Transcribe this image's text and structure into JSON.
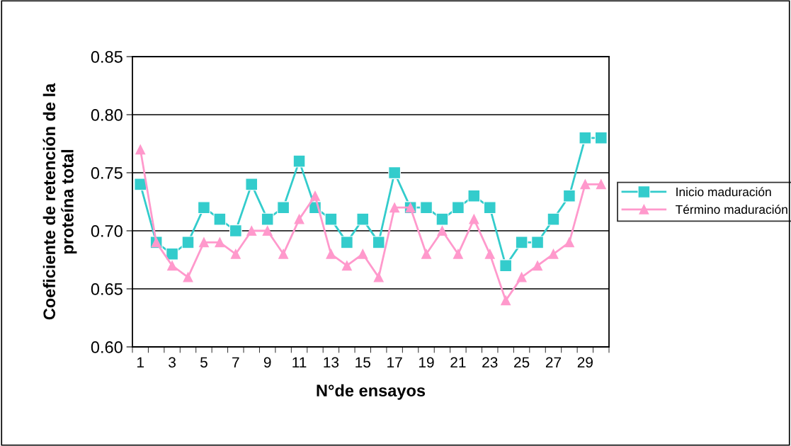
{
  "chart_data": {
    "type": "line",
    "xlabel": "N°de ensayos",
    "ylabel": "Coeficiente de retención de la\nproteína total",
    "categories": [
      "1",
      null,
      "3",
      null,
      "5",
      null,
      "7",
      null,
      "9",
      null,
      "11",
      null,
      "13",
      null,
      "15",
      null,
      "17",
      null,
      "19",
      null,
      "21",
      null,
      "23",
      null,
      "25",
      null,
      "27",
      null,
      "29",
      null
    ],
    "series": [
      {
        "name": "Inicio maduración",
        "color": "#33cccc",
        "marker": "square",
        "values": [
          0.74,
          0.69,
          0.68,
          0.69,
          0.72,
          0.71,
          0.7,
          0.74,
          0.71,
          0.72,
          0.76,
          0.72,
          0.71,
          0.69,
          0.71,
          0.69,
          0.75,
          0.72,
          0.72,
          0.71,
          0.72,
          0.73,
          0.72,
          0.67,
          0.69,
          0.69,
          0.71,
          0.73,
          0.78,
          0.78
        ]
      },
      {
        "name": "Término maduración",
        "color": "#ff99cc",
        "marker": "triangle",
        "values": [
          0.77,
          0.69,
          0.67,
          0.66,
          0.69,
          0.69,
          0.68,
          0.7,
          0.7,
          0.68,
          0.71,
          0.73,
          0.68,
          0.67,
          0.68,
          0.66,
          0.72,
          0.72,
          0.68,
          0.7,
          0.68,
          0.71,
          0.68,
          0.64,
          0.66,
          0.67,
          0.68,
          0.69,
          0.74,
          0.74
        ]
      }
    ],
    "ylim": [
      0.6,
      0.85
    ],
    "yticks": [
      {
        "value": 0.6,
        "label": "0.60"
      },
      {
        "value": 0.65,
        "label": "0.65"
      },
      {
        "value": 0.7,
        "label": "0.70"
      },
      {
        "value": 0.75,
        "label": "0.75"
      },
      {
        "value": 0.8,
        "label": "0.80"
      },
      {
        "value": 0.85,
        "label": "0.85"
      }
    ],
    "grid": "y",
    "legend": "right",
    "line_style": "solid"
  }
}
